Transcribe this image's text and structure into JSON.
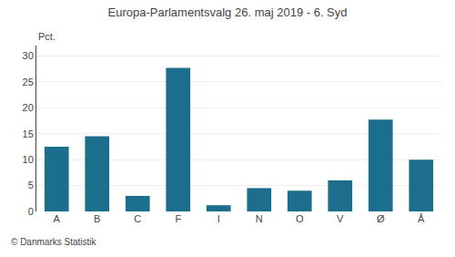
{
  "chart_data": {
    "type": "bar",
    "title": "Europa-Parlamentsvalg 26. maj 2019 - 6. Syd",
    "ylabel": "Pct.",
    "categories": [
      "A",
      "B",
      "C",
      "F",
      "I",
      "N",
      "O",
      "V",
      "Ø",
      "Å"
    ],
    "values": [
      12.5,
      14.5,
      3.0,
      27.7,
      1.2,
      4.5,
      4.0,
      6.0,
      17.7,
      10.0
    ],
    "color": "#1c6f8c",
    "ylim": [
      0,
      32
    ],
    "yticks": [
      0,
      5,
      10,
      15,
      20,
      25,
      30
    ],
    "grid": true,
    "annotations": [
      "© Danmarks Statistik"
    ]
  }
}
